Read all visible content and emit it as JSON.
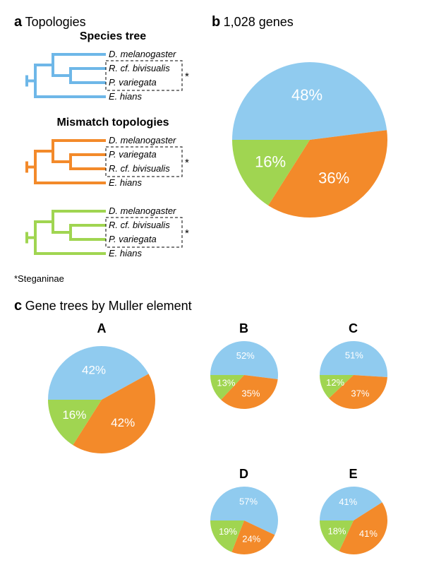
{
  "panel_a": {
    "letter": "a",
    "title": "Topologies",
    "species_tree": {
      "heading": "Species tree",
      "color": "#6eb7e8",
      "taxa": [
        "D. melanogaster",
        "R. cf. bivisualis",
        "P. variegata",
        "E. hians"
      ]
    },
    "mismatch": {
      "heading": "Mismatch topologies",
      "tree1": {
        "color": "#f38a2a",
        "taxa": [
          "D. melanogaster",
          "P. variegata",
          "R. cf. bivisualis",
          "E. hians"
        ]
      },
      "tree2": {
        "color": "#a0d551",
        "taxa": [
          "D. melanogaster",
          "R. cf. bivisualis",
          "P. variegata",
          "E. hians"
        ]
      }
    },
    "footnote": "*Steganinae"
  },
  "panel_b": {
    "letter": "b",
    "title": "1,028 genes",
    "pie": {
      "type": "pie",
      "values": [
        48,
        36,
        16
      ],
      "colors": [
        "#90cbef",
        "#f38a2a",
        "#a0d551"
      ],
      "labels": [
        "48%",
        "36%",
        "16%"
      ],
      "label_fontsize": 22,
      "radius": 110
    }
  },
  "panel_c": {
    "letter": "c",
    "title": "Gene trees by Muller element",
    "charts": {
      "A": {
        "values": [
          42,
          42,
          16
        ],
        "labels": [
          "42%",
          "42%",
          "16%"
        ],
        "radius": 76,
        "label_fontsize": 17
      },
      "B": {
        "values": [
          52,
          35,
          13
        ],
        "labels": [
          "52%",
          "35%",
          "13%"
        ],
        "radius": 48,
        "label_fontsize": 13
      },
      "C": {
        "values": [
          51,
          37,
          12
        ],
        "labels": [
          "51%",
          "37%",
          "12%"
        ],
        "radius": 48,
        "label_fontsize": 13
      },
      "D": {
        "values": [
          57,
          24,
          19
        ],
        "labels": [
          "57%",
          "24%",
          "19%"
        ],
        "radius": 48,
        "label_fontsize": 13
      },
      "E": {
        "values": [
          41,
          41,
          18
        ],
        "labels": [
          "41%",
          "41%",
          "18%"
        ],
        "radius": 48,
        "label_fontsize": 13
      }
    },
    "colors": [
      "#90cbef",
      "#f38a2a",
      "#a0d551"
    ]
  }
}
